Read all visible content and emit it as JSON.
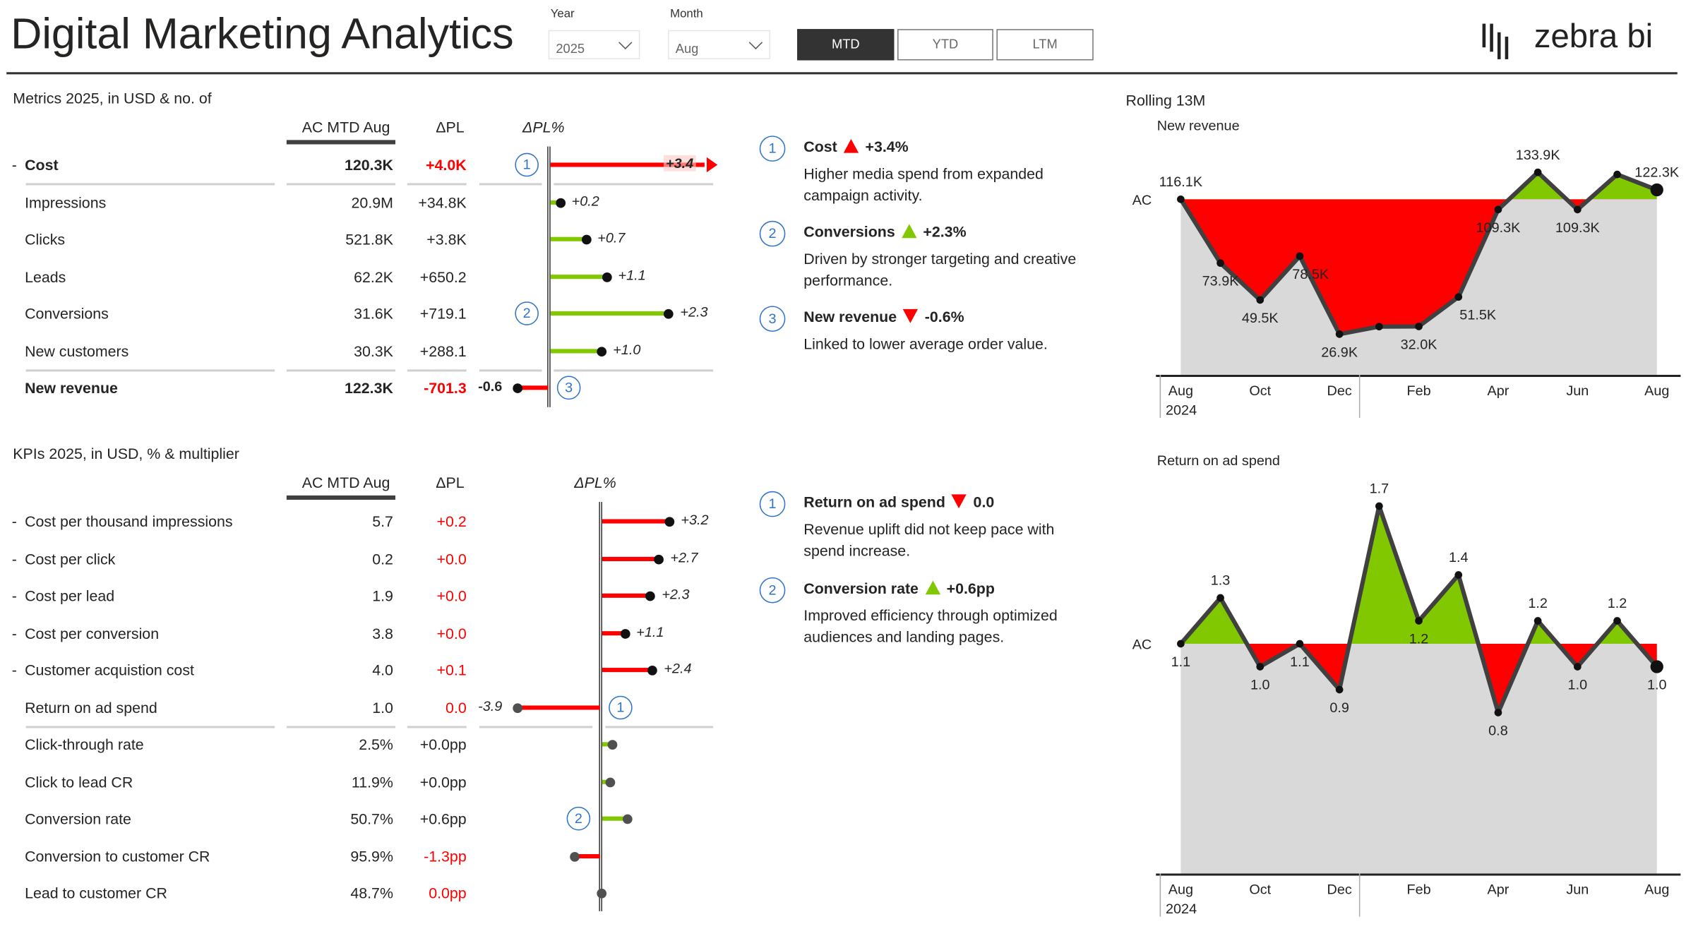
{
  "header": {
    "title": "Digital Marketing Analytics",
    "year_label": "Year",
    "year_value": "2025",
    "month_label": "Month",
    "month_value": "Aug",
    "buttons": [
      {
        "label": "MTD",
        "active": true
      },
      {
        "label": "YTD",
        "active": false
      },
      {
        "label": "LTM",
        "active": false
      }
    ],
    "logo_text": "zebra bi"
  },
  "colors": {
    "positive": "#82c800",
    "negative": "#ff0000",
    "annotation": "#2f74c9",
    "reference_fill": "#d9d9d9",
    "line": "#404040"
  },
  "metrics": {
    "title": "Metrics 2025, in USD & no. of",
    "columns": {
      "ac": "AC MTD Aug",
      "dpl": "ΔPL",
      "dpl_pct": "ΔPL%"
    },
    "rows": [
      {
        "label": "Cost",
        "ac": "120.3K",
        "dpl": "+4.0K",
        "dpl_pct": 3.4,
        "dpl_pct_label": "+3.4",
        "bold": true,
        "dash": "-",
        "dpl_red": true,
        "sentiment": "negative",
        "annotation": "1"
      },
      {
        "label": "Impressions",
        "ac": "20.9M",
        "dpl": "+34.8K",
        "dpl_pct": 0.2,
        "dpl_pct_label": "+0.2",
        "sentiment": "positive"
      },
      {
        "label": "Clicks",
        "ac": "521.8K",
        "dpl": "+3.8K",
        "dpl_pct": 0.7,
        "dpl_pct_label": "+0.7",
        "sentiment": "positive"
      },
      {
        "label": "Leads",
        "ac": "62.2K",
        "dpl": "+650.2",
        "dpl_pct": 1.1,
        "dpl_pct_label": "+1.1",
        "sentiment": "positive"
      },
      {
        "label": "Conversions",
        "ac": "31.6K",
        "dpl": "+719.1",
        "dpl_pct": 2.3,
        "dpl_pct_label": "+2.3",
        "sentiment": "positive",
        "annotation": "2"
      },
      {
        "label": "New customers",
        "ac": "30.3K",
        "dpl": "+288.1",
        "dpl_pct": 1.0,
        "dpl_pct_label": "+1.0",
        "sentiment": "positive"
      },
      {
        "label": "New revenue",
        "ac": "122.3K",
        "dpl": "-701.3",
        "dpl_pct": -0.6,
        "dpl_pct_label": "-0.6",
        "bold": true,
        "dpl_red": true,
        "sentiment": "negative",
        "annotation": "3"
      }
    ]
  },
  "kpis": {
    "title": "KPIs 2025, in USD, % & multiplier",
    "columns": {
      "ac": "AC MTD Aug",
      "dpl": "ΔPL",
      "dpl_pct": "ΔPL%"
    },
    "rows": [
      {
        "label": "Cost per thousand impressions",
        "ac": "5.7",
        "dpl": "+0.2",
        "dpl_pct": 3.2,
        "dpl_pct_label": "+3.2",
        "dash": "-",
        "dpl_red": true,
        "sentiment": "negative"
      },
      {
        "label": "Cost per click",
        "ac": "0.2",
        "dpl": "+0.0",
        "dpl_pct": 2.7,
        "dpl_pct_label": "+2.7",
        "dash": "-",
        "dpl_red": true,
        "sentiment": "negative"
      },
      {
        "label": "Cost per lead",
        "ac": "1.9",
        "dpl": "+0.0",
        "dpl_pct": 2.3,
        "dpl_pct_label": "+2.3",
        "dash": "-",
        "dpl_red": true,
        "sentiment": "negative"
      },
      {
        "label": "Cost per conversion",
        "ac": "3.8",
        "dpl": "+0.0",
        "dpl_pct": 1.1,
        "dpl_pct_label": "+1.1",
        "dash": "-",
        "dpl_red": true,
        "sentiment": "negative"
      },
      {
        "label": "Customer acquistion cost",
        "ac": "4.0",
        "dpl": "+0.1",
        "dpl_pct": 2.4,
        "dpl_pct_label": "+2.4",
        "dash": "-",
        "dpl_red": true,
        "sentiment": "negative"
      },
      {
        "label": "Return on ad spend",
        "ac": "1.0",
        "dpl": "0.0",
        "dpl_pct": -3.9,
        "dpl_pct_label": "-3.9",
        "dpl_red": true,
        "sentiment": "negative",
        "annotation": "1"
      },
      {
        "label": "Click-through rate",
        "ac": "2.5%",
        "dpl": "+0.0pp",
        "dpl_pct": 0.5,
        "sentiment": "positive"
      },
      {
        "label": "Click to lead CR",
        "ac": "11.9%",
        "dpl": "+0.0pp",
        "dpl_pct": 0.4,
        "sentiment": "positive"
      },
      {
        "label": "Conversion rate",
        "ac": "50.7%",
        "dpl": "+0.6pp",
        "dpl_pct": 1.2,
        "sentiment": "positive",
        "annotation": "2"
      },
      {
        "label": "Conversion to customer CR",
        "ac": "95.9%",
        "dpl": "-1.3pp",
        "dpl_pct": -1.2,
        "dpl_red": true,
        "sentiment": "negative"
      },
      {
        "label": "Lead to customer CR",
        "ac": "48.7%",
        "dpl": "0.0pp",
        "dpl_pct": 0.0,
        "dpl_red": true,
        "sentiment": "negative"
      }
    ]
  },
  "annotations_metrics": [
    {
      "num": "1",
      "title": "Cost",
      "direction": "up",
      "color": "#ff0000",
      "value": "+3.4%",
      "body": "Higher media spend from expanded campaign activity."
    },
    {
      "num": "2",
      "title": "Conversions",
      "direction": "up",
      "color": "#82c800",
      "value": "+2.3%",
      "body": "Driven by stronger targeting and creative performance."
    },
    {
      "num": "3",
      "title": "New revenue",
      "direction": "down",
      "color": "#ff0000",
      "value": "-0.6%",
      "body": "Linked to lower average order value."
    }
  ],
  "annotations_kpis": [
    {
      "num": "1",
      "title": "Return on ad spend",
      "direction": "down",
      "color": "#ff0000",
      "value": "0.0",
      "body": "Revenue uplift did not keep pace with spend increase."
    },
    {
      "num": "2",
      "title": "Conversion rate",
      "direction": "up",
      "color": "#82c800",
      "value": "+0.6pp",
      "body": "Improved efficiency through optimized audiences and landing pages."
    }
  ],
  "rolling_title": "Rolling 13M",
  "chart_data": [
    {
      "type": "area",
      "title": "New revenue",
      "reference_label": "AC",
      "reference_value": 116.1,
      "unit": "K",
      "x": [
        "Aug 2024",
        "Sep 2024",
        "Oct 2024",
        "Nov 2024",
        "Dec 2024",
        "Jan 2025",
        "Feb 2025",
        "Mar 2025",
        "Apr 2025",
        "May 2025",
        "Jun 2025",
        "Jul 2025",
        "Aug 2025"
      ],
      "x_tick_labels": [
        "Aug",
        "",
        "Oct",
        "",
        "Dec",
        "",
        "Feb",
        "",
        "Apr",
        "",
        "Jun",
        "",
        "Aug"
      ],
      "year_label": "2024",
      "values": [
        116.1,
        73.9,
        49.5,
        78.5,
        26.9,
        31.9,
        32.0,
        51.5,
        109.3,
        133.9,
        109.3,
        132.5,
        122.3
      ],
      "labels": [
        "116.1K",
        "73.9K",
        "49.5K",
        "78.5K",
        "26.9K",
        "",
        "32.0K",
        "51.5K",
        "109.3K",
        "133.9K",
        "109.3K",
        "",
        "122.3K"
      ],
      "ylim": [
        0,
        140
      ]
    },
    {
      "type": "area",
      "title": "Return on ad spend",
      "reference_label": "AC",
      "reference_value": 1.1,
      "x": [
        "Aug 2024",
        "Sep 2024",
        "Oct 2024",
        "Nov 2024",
        "Dec 2024",
        "Jan 2025",
        "Feb 2025",
        "Mar 2025",
        "Apr 2025",
        "May 2025",
        "Jun 2025",
        "Jul 2025",
        "Aug 2025"
      ],
      "x_tick_labels": [
        "Aug",
        "",
        "Oct",
        "",
        "Dec",
        "",
        "Feb",
        "",
        "Apr",
        "",
        "Jun",
        "",
        "Aug"
      ],
      "year_label": "2024",
      "values": [
        1.1,
        1.3,
        1.0,
        1.1,
        0.9,
        1.7,
        1.2,
        1.4,
        0.8,
        1.2,
        1.0,
        1.2,
        1.0
      ],
      "labels": [
        "1.1",
        "1.3",
        "1.0",
        "1.1",
        "0.9",
        "1.7",
        "1.2",
        "1.4",
        "0.8",
        "1.2",
        "1.0",
        "1.2",
        "1.0"
      ]
    }
  ]
}
